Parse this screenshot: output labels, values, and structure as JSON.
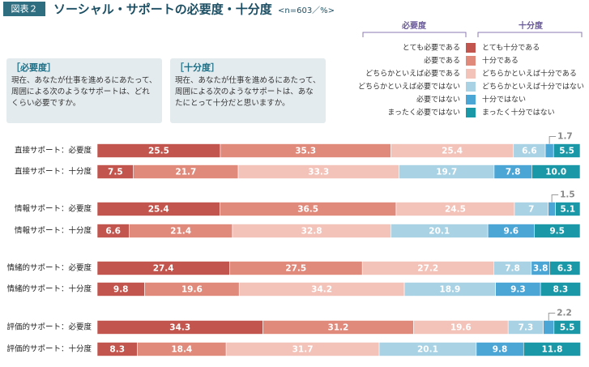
{
  "header": {
    "badge": "図表２",
    "title": "ソーシャル・サポートの必要度・十分度",
    "note": "<n=603／%>"
  },
  "boxes": [
    {
      "title": "［必要度］",
      "text": "現在、あなたが仕事を進めるにあたって、周囲による次のようなサポートは、どれくらい必要ですか。"
    },
    {
      "title": "［十分度］",
      "text": "現在、あなたが仕事を進めるにあたって、周囲による次のようなサポートは、あなたにとって十分だと思いますか。"
    }
  ],
  "chart_data": {
    "type": "stacked-bar",
    "orientation": "horizontal",
    "xlim": [
      0,
      100
    ],
    "legend": {
      "need_title": "必要度",
      "need": [
        "とても必要である",
        "必要である",
        "どちらかといえば必要である",
        "どちらかといえば必要ではない",
        "必要ではない",
        "まったく必要ではない"
      ],
      "suff_title": "十分度",
      "suff": [
        "とても十分である",
        "十分である",
        "どちらかといえば十分である",
        "どちらかといえば十分ではない",
        "十分ではない",
        "まったく十分ではない"
      ]
    },
    "colors": [
      "#c2554d",
      "#e08a7c",
      "#f3c3ba",
      "#a9d3e5",
      "#4ba6d6",
      "#1b98a8"
    ],
    "bars": [
      {
        "label": "直接サポート：必要度",
        "values": [
          25.5,
          35.3,
          25.4,
          6.6,
          1.7,
          5.5
        ]
      },
      {
        "label": "直接サポート：十分度",
        "values": [
          7.5,
          21.7,
          33.3,
          19.7,
          7.8,
          10
        ],
        "value_labels": [
          "7.5",
          "21.7",
          "33.3",
          "19.7",
          "7.8",
          "10.0"
        ]
      },
      {
        "label": "情報サポート：必要度",
        "values": [
          25.4,
          36.5,
          24.5,
          7.0,
          1.5,
          5.1
        ]
      },
      {
        "label": "情報サポート：十分度",
        "values": [
          6.6,
          21.4,
          32.8,
          20.1,
          9.6,
          9.5
        ]
      },
      {
        "label": "情緒的サポート：必要度",
        "values": [
          27.4,
          27.5,
          27.2,
          7.8,
          3.8,
          6.3
        ]
      },
      {
        "label": "情緒的サポート：十分度",
        "values": [
          9.8,
          19.6,
          34.2,
          18.9,
          9.3,
          8.3
        ]
      },
      {
        "label": "評価的サポート：必要度",
        "values": [
          34.3,
          31.2,
          19.6,
          7.3,
          2.2,
          5.5
        ]
      },
      {
        "label": "評価的サポート：十分度",
        "values": [
          8.3,
          18.4,
          31.7,
          20.1,
          9.8,
          11.8
        ]
      }
    ]
  }
}
